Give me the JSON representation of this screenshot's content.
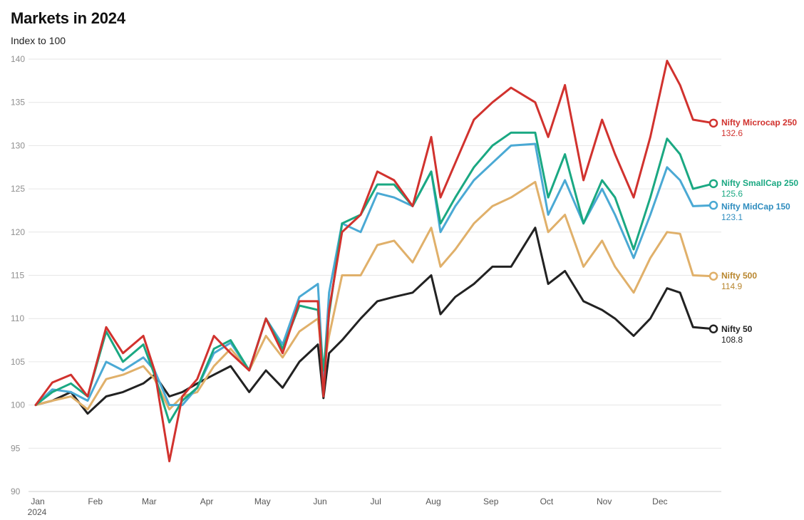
{
  "chart_data": {
    "type": "line",
    "title": "Markets in 2024",
    "subtitle": "Index to 100",
    "xlabel": "",
    "ylabel": "",
    "ylim": [
      90,
      140
    ],
    "yticks": [
      "90",
      "95",
      "100",
      "105",
      "110",
      "115",
      "120",
      "125",
      "130",
      "135",
      "140"
    ],
    "xticks": [
      "Jan",
      "Feb",
      "Mar",
      "Apr",
      "May",
      "Jun",
      "Jul",
      "Aug",
      "Sep",
      "Oct",
      "Nov",
      "Dec"
    ],
    "year_label": "2024",
    "grid": true,
    "legend": "end-of-line labels",
    "x": [
      "2024-01-01",
      "2024-01-10",
      "2024-01-20",
      "2024-01-29",
      "2024-02-08",
      "2024-02-17",
      "2024-02-28",
      "2024-03-05",
      "2024-03-13",
      "2024-03-20",
      "2024-03-28",
      "2024-04-06",
      "2024-04-15",
      "2024-04-25",
      "2024-05-04",
      "2024-05-13",
      "2024-05-22",
      "2024-06-01",
      "2024-06-04",
      "2024-06-07",
      "2024-06-14",
      "2024-06-24",
      "2024-07-03",
      "2024-07-12",
      "2024-07-22",
      "2024-08-01",
      "2024-08-06",
      "2024-08-14",
      "2024-08-24",
      "2024-09-03",
      "2024-09-13",
      "2024-09-26",
      "2024-10-03",
      "2024-10-12",
      "2024-10-22",
      "2024-11-01",
      "2024-11-08",
      "2024-11-18",
      "2024-11-27",
      "2024-12-06",
      "2024-12-13",
      "2024-12-20",
      "2024-12-31"
    ],
    "series": [
      {
        "name": "Nifty Microcap 250",
        "color": "#d1322e",
        "end_value": "132.6",
        "values": [
          100,
          102.6,
          103.5,
          101,
          109,
          106,
          108,
          104,
          93.5,
          101,
          103,
          108,
          106,
          104,
          110,
          106,
          112,
          112,
          101,
          111,
          120,
          122,
          127,
          126,
          123,
          131,
          124,
          128,
          133,
          135,
          136.7,
          135,
          131,
          137,
          126,
          133,
          129,
          124,
          131,
          139.8,
          137,
          133,
          132.6
        ]
      },
      {
        "name": "Nifty SmallCap 250",
        "color": "#1aa882",
        "end_value": "125.6",
        "values": [
          100,
          101.5,
          102.5,
          101,
          108.5,
          105,
          107,
          103.5,
          98,
          100.5,
          102,
          106.5,
          107.5,
          104,
          110,
          106.5,
          111.5,
          111,
          104,
          110.5,
          121,
          122,
          125.5,
          125.5,
          123,
          127,
          121,
          124,
          127.5,
          130,
          131.5,
          131.5,
          124,
          129,
          121,
          126,
          124,
          118,
          124,
          130.8,
          129,
          125,
          125.6
        ]
      },
      {
        "name": "Nifty MidCap 150",
        "color": "#4aa9d4",
        "end_value": "123.1",
        "values": [
          100,
          101.8,
          101.5,
          100.5,
          105,
          104,
          105.5,
          104,
          100,
          100,
          102,
          106,
          107.2,
          104,
          110,
          107,
          112.5,
          114,
          103,
          113,
          121,
          120,
          124.5,
          124,
          123,
          127,
          120,
          123,
          126,
          128,
          130,
          130.2,
          122,
          126,
          121,
          125,
          122,
          117,
          122,
          127.5,
          126,
          123,
          123.1
        ]
      },
      {
        "name": "Nifty 500",
        "color": "#e0b06a",
        "end_value": "114.9",
        "values": [
          100,
          100.5,
          101,
          99.5,
          103,
          103.5,
          104.5,
          103,
          99.5,
          101,
          101.5,
          104.5,
          106.5,
          104,
          108,
          105.5,
          108.5,
          110,
          104,
          108,
          115,
          115,
          118.5,
          119,
          116.5,
          120.5,
          116,
          118,
          121,
          123,
          124,
          125.8,
          120,
          122,
          116,
          119,
          116,
          113,
          117,
          120,
          119.8,
          115,
          114.9
        ]
      },
      {
        "name": "Nifty 50",
        "color": "#222222",
        "end_value": "108.8",
        "values": [
          100,
          100.5,
          101.5,
          99,
          101,
          101.5,
          102.5,
          103.5,
          101,
          101.5,
          102.5,
          103.5,
          104.5,
          101.5,
          104,
          102,
          105,
          107,
          100.8,
          106,
          107.5,
          110,
          112,
          112.5,
          113,
          115,
          110.5,
          112.5,
          114,
          116,
          116,
          120.5,
          114,
          115.5,
          112,
          111,
          110,
          108,
          110,
          113.5,
          113,
          109,
          108.8
        ]
      }
    ]
  }
}
